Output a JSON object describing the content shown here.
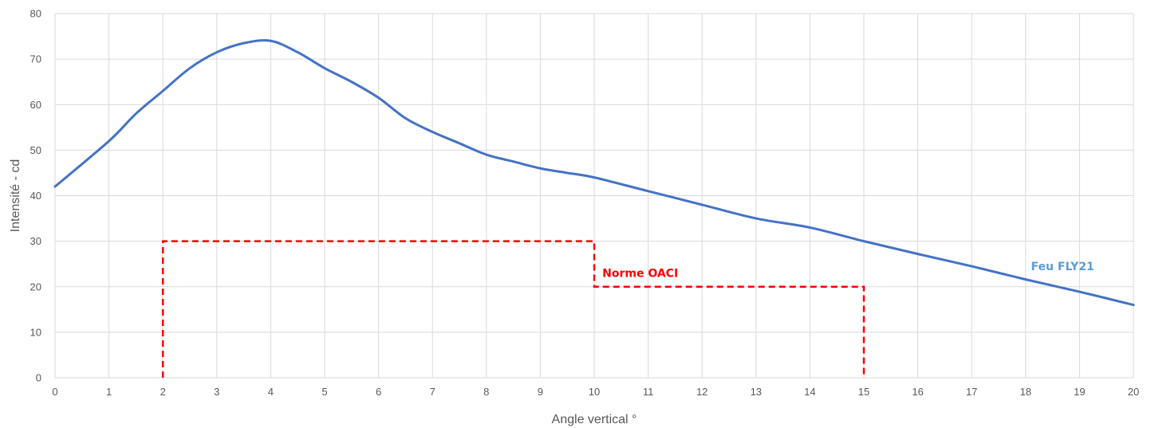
{
  "chart_data": {
    "type": "line",
    "xlabel": "Angle vertical °",
    "ylabel": "Intensité - cd",
    "xlim": [
      0,
      20
    ],
    "ylim": [
      0,
      80
    ],
    "x_ticks": [
      "0",
      "1",
      "2",
      "3",
      "4",
      "5",
      "6",
      "7",
      "8",
      "9",
      "10",
      "11",
      "12",
      "13",
      "14",
      "15",
      "16",
      "17",
      "18",
      "19",
      "20"
    ],
    "y_ticks": [
      "0",
      "10",
      "20",
      "30",
      "40",
      "50",
      "60",
      "70",
      "80"
    ],
    "grid": true,
    "series": [
      {
        "name": "Feu FLY21",
        "color": "#4472c4",
        "x": [
          0,
          1,
          1.5,
          2,
          2.5,
          3,
          3.5,
          4,
          4.5,
          5,
          5.5,
          6,
          6.5,
          7,
          7.5,
          8,
          8.5,
          9,
          9.5,
          10,
          11,
          12,
          13,
          14,
          15,
          16,
          17,
          18,
          19,
          20
        ],
        "y": [
          42,
          52,
          58,
          63,
          68,
          71.5,
          73.5,
          74,
          71.5,
          68,
          65,
          61.5,
          57,
          54,
          51.5,
          49,
          47.5,
          46,
          45,
          44,
          41,
          38,
          35,
          33,
          30,
          27.2,
          24.5,
          21.6,
          18.9,
          16
        ]
      },
      {
        "name": "Norme OACI",
        "color": "#ff0000",
        "dashed": true,
        "x": [
          2,
          2,
          10,
          10,
          15,
          15
        ],
        "y": [
          0,
          30,
          30,
          20,
          20,
          0
        ]
      }
    ],
    "annotations": [
      {
        "text": "Norme OACI",
        "x": 10.15,
        "y": 23,
        "color": "#ff0000"
      },
      {
        "text": "Feu FLY21",
        "x": 18.1,
        "y": 24.5,
        "color": "#5b9bd5"
      }
    ]
  }
}
